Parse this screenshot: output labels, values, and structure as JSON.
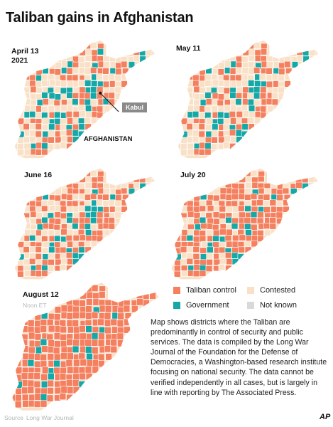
{
  "title": "Taliban gains in Afghanistan",
  "colors": {
    "taliban": "#f4805f",
    "contested": "#f9e1c8",
    "government": "#16a8a7",
    "not_known": "#d9d9d9",
    "label_box": "#8a8a8a"
  },
  "maps": [
    {
      "date": "April 13\n2021",
      "share": {
        "taliban": 0.3,
        "contested": 0.4,
        "government": 0.3
      },
      "labels": {
        "city": "Kabul",
        "country": "AFGHANISTAN"
      }
    },
    {
      "date": "May 11",
      "share": {
        "taliban": 0.3,
        "contested": 0.45,
        "government": 0.25
      }
    },
    {
      "date": "June  16",
      "share": {
        "taliban": 0.45,
        "contested": 0.33,
        "government": 0.22
      }
    },
    {
      "date": "July 20",
      "share": {
        "taliban": 0.68,
        "contested": 0.18,
        "government": 0.14
      }
    },
    {
      "date": "August  12",
      "sub": "Noon ET",
      "share": {
        "taliban": 0.9,
        "contested": 0.01,
        "government": 0.09
      }
    }
  ],
  "legend": [
    {
      "label": "Taliban control",
      "color_key": "taliban"
    },
    {
      "label": "Contested",
      "color_key": "contested"
    },
    {
      "label": "Government",
      "color_key": "government"
    },
    {
      "label": "Not known",
      "color_key": "not_known"
    }
  ],
  "description": "Map shows districts where the Taliban are predominantly in control of security and public services. The data is compiled by the Long War Journal of the Foundation for the Defense of Democracies, a Washington-based research institute focusing on national security. The data cannot be verified independently in all cases,  but is largely in line with reporting by The Associated Press.",
  "source": {
    "label": "Source",
    "text": "Long War Journal"
  },
  "logo": "AP"
}
